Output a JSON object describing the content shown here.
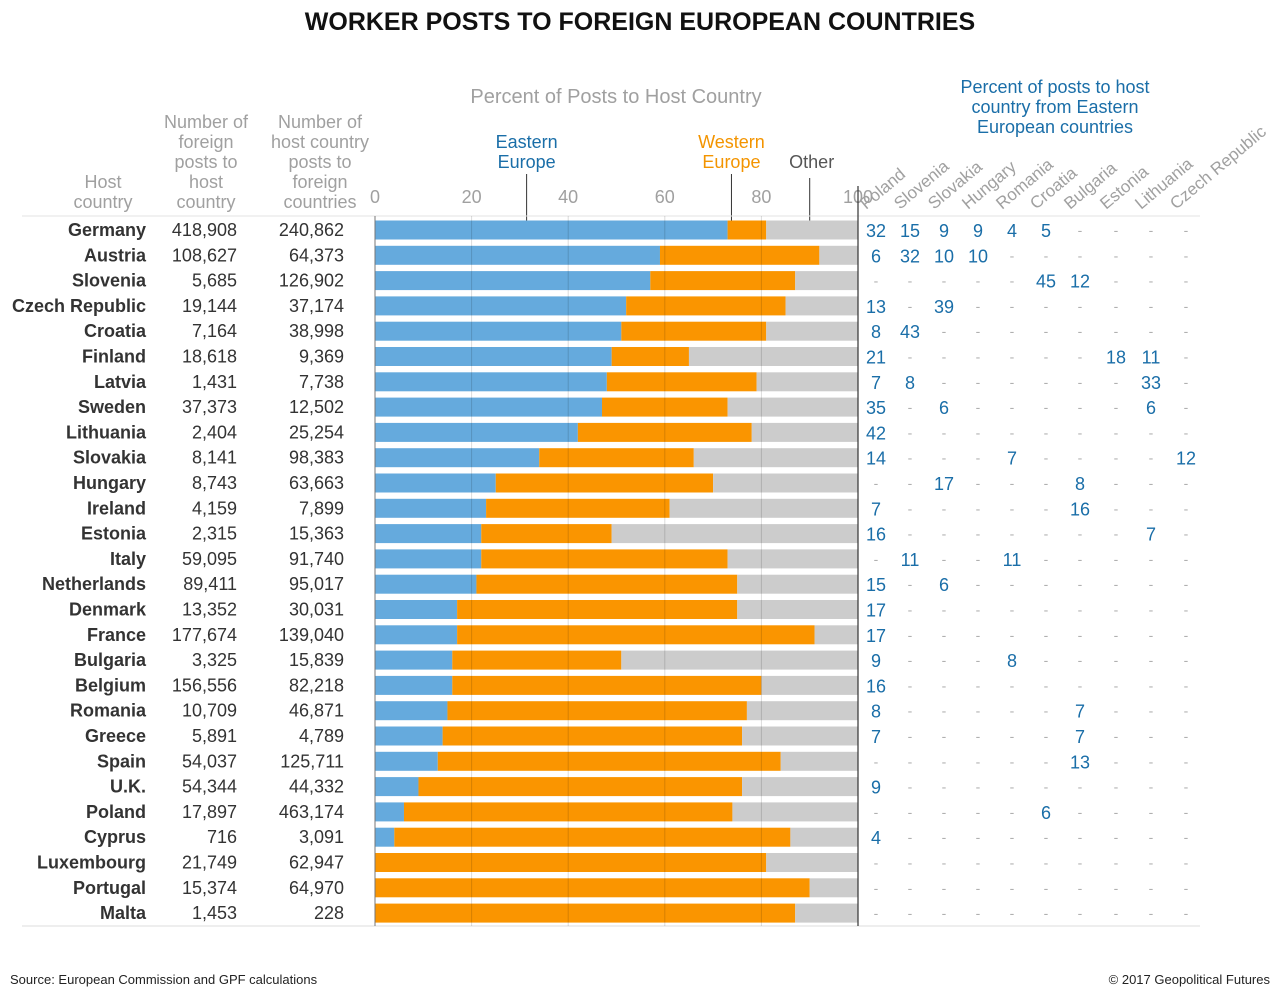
{
  "title": "WORKER POSTS TO FOREIGN EUROPEAN COUNTRIES",
  "headers": {
    "host_country": [
      "Host",
      "country"
    ],
    "foreign_posts": [
      "Number of",
      "foreign",
      "posts to",
      "host",
      "country"
    ],
    "host_posts": [
      "Number of",
      "host country",
      "posts to",
      "foreign",
      "countries"
    ],
    "percent_axis": "Percent of Posts to Host Country",
    "eastern_title": [
      "Percent of posts to host",
      "country from Eastern",
      "European countries"
    ]
  },
  "footer": {
    "source": "Source: European Commission and GPF calculations",
    "copyright": "© 2017 Geopolitical Futures"
  },
  "colors": {
    "eastern": "#65aadd",
    "western": "#fa9500",
    "other": "#cccccc",
    "eastern_text": "#1a6ea8"
  },
  "chart_data": {
    "type": "bar",
    "orientation": "horizontal",
    "stacked": true,
    "xlim": [
      0,
      100
    ],
    "x_ticks": [
      0,
      20,
      40,
      60,
      80,
      100
    ],
    "grid": true,
    "series_labels": [
      {
        "key": "eastern",
        "label": [
          "Eastern",
          "Europe"
        ]
      },
      {
        "key": "western",
        "label": [
          "Western",
          "Europe"
        ]
      },
      {
        "key": "other",
        "label": [
          "Other"
        ]
      }
    ],
    "categories": [
      "Germany",
      "Austria",
      "Slovenia",
      "Czech Republic",
      "Croatia",
      "Finland",
      "Latvia",
      "Sweden",
      "Lithuania",
      "Slovakia",
      "Hungary",
      "Ireland",
      "Estonia",
      "Italy",
      "Netherlands",
      "Denmark",
      "France",
      "Bulgaria",
      "Belgium",
      "Romania",
      "Greece",
      "Spain",
      "U.K.",
      "Poland",
      "Cyprus",
      "Luxembourg",
      "Portugal",
      "Malta"
    ],
    "foreign_posts": [
      "418,908",
      "108,627",
      "5,685",
      "19,144",
      "7,164",
      "18,618",
      "1,431",
      "37,373",
      "2,404",
      "8,141",
      "8,743",
      "4,159",
      "2,315",
      "59,095",
      "89,411",
      "13,352",
      "177,674",
      "3,325",
      "156,556",
      "10,709",
      "5,891",
      "54,037",
      "54,344",
      "17,897",
      "716",
      "21,749",
      "15,374",
      "1,453"
    ],
    "host_posts": [
      "240,862",
      "64,373",
      "126,902",
      "37,174",
      "38,998",
      "9,369",
      "7,738",
      "12,502",
      "25,254",
      "98,383",
      "63,663",
      "7,899",
      "15,363",
      "91,740",
      "95,017",
      "30,031",
      "139,040",
      "15,839",
      "82,218",
      "46,871",
      "4,789",
      "125,711",
      "44,332",
      "463,174",
      "3,091",
      "62,947",
      "64,970",
      "228"
    ],
    "series": [
      {
        "name": "Eastern Europe",
        "values": [
          73,
          59,
          57,
          52,
          51,
          49,
          48,
          47,
          42,
          34,
          25,
          23,
          22,
          22,
          21,
          17,
          17,
          16,
          16,
          15,
          14,
          13,
          9,
          6,
          4,
          0,
          0,
          0
        ]
      },
      {
        "name": "Western Europe",
        "values": [
          8,
          33,
          30,
          33,
          30,
          16,
          31,
          26,
          36,
          32,
          45,
          38,
          27,
          51,
          54,
          58,
          74,
          35,
          64,
          62,
          62,
          71,
          67,
          68,
          82,
          81,
          90,
          87
        ]
      },
      {
        "name": "Other",
        "values": [
          19,
          8,
          13,
          15,
          19,
          35,
          21,
          27,
          22,
          34,
          30,
          39,
          51,
          27,
          25,
          25,
          9,
          49,
          20,
          23,
          24,
          16,
          24,
          26,
          14,
          19,
          10,
          13
        ]
      }
    ],
    "eastern_columns": [
      "Poland",
      "Slovenia",
      "Slovakia",
      "Hungary",
      "Romania",
      "Croatia",
      "Bulgaria",
      "Estonia",
      "Lithuania",
      "Czech Republic"
    ],
    "eastern_breakdown": [
      [
        32,
        15,
        9,
        9,
        4,
        5,
        null,
        null,
        null,
        null
      ],
      [
        6,
        32,
        10,
        10,
        null,
        null,
        null,
        null,
        null,
        null
      ],
      [
        null,
        null,
        null,
        null,
        null,
        45,
        12,
        null,
        null,
        null
      ],
      [
        13,
        null,
        39,
        null,
        null,
        null,
        null,
        null,
        null,
        null
      ],
      [
        8,
        43,
        null,
        null,
        null,
        null,
        null,
        null,
        null,
        null
      ],
      [
        21,
        null,
        null,
        null,
        null,
        null,
        null,
        18,
        11,
        null
      ],
      [
        7,
        8,
        null,
        null,
        null,
        null,
        null,
        null,
        33,
        null
      ],
      [
        35,
        null,
        6,
        null,
        null,
        null,
        null,
        null,
        6,
        null
      ],
      [
        42,
        null,
        null,
        null,
        null,
        null,
        null,
        null,
        null,
        null
      ],
      [
        14,
        null,
        null,
        null,
        7,
        null,
        null,
        null,
        null,
        12
      ],
      [
        null,
        null,
        17,
        null,
        null,
        null,
        8,
        null,
        null,
        null
      ],
      [
        7,
        null,
        null,
        null,
        null,
        null,
        16,
        null,
        null,
        null
      ],
      [
        16,
        null,
        null,
        null,
        null,
        null,
        null,
        null,
        7,
        null
      ],
      [
        null,
        11,
        null,
        null,
        11,
        null,
        null,
        null,
        null,
        null
      ],
      [
        15,
        null,
        6,
        null,
        null,
        null,
        null,
        null,
        null,
        null
      ],
      [
        17,
        null,
        null,
        null,
        null,
        null,
        null,
        null,
        null,
        null
      ],
      [
        17,
        null,
        null,
        null,
        null,
        null,
        null,
        null,
        null,
        null
      ],
      [
        9,
        null,
        null,
        null,
        8,
        null,
        null,
        null,
        null,
        null
      ],
      [
        16,
        null,
        null,
        null,
        null,
        null,
        null,
        null,
        null,
        null
      ],
      [
        8,
        null,
        null,
        null,
        null,
        null,
        7,
        null,
        null,
        null
      ],
      [
        7,
        null,
        null,
        null,
        null,
        null,
        7,
        null,
        null,
        null
      ],
      [
        null,
        null,
        null,
        null,
        null,
        null,
        13,
        null,
        null,
        null
      ],
      [
        9,
        null,
        null,
        null,
        null,
        null,
        null,
        null,
        null,
        null
      ],
      [
        null,
        null,
        null,
        null,
        null,
        6,
        null,
        null,
        null,
        null
      ],
      [
        4,
        null,
        null,
        null,
        null,
        null,
        null,
        null,
        null,
        null
      ],
      [
        null,
        null,
        null,
        null,
        null,
        null,
        null,
        null,
        null,
        null
      ],
      [
        null,
        null,
        null,
        null,
        null,
        null,
        null,
        null,
        null,
        null
      ],
      [
        null,
        null,
        null,
        null,
        null,
        null,
        null,
        null,
        null,
        null
      ]
    ],
    "missing_marker": "-"
  }
}
